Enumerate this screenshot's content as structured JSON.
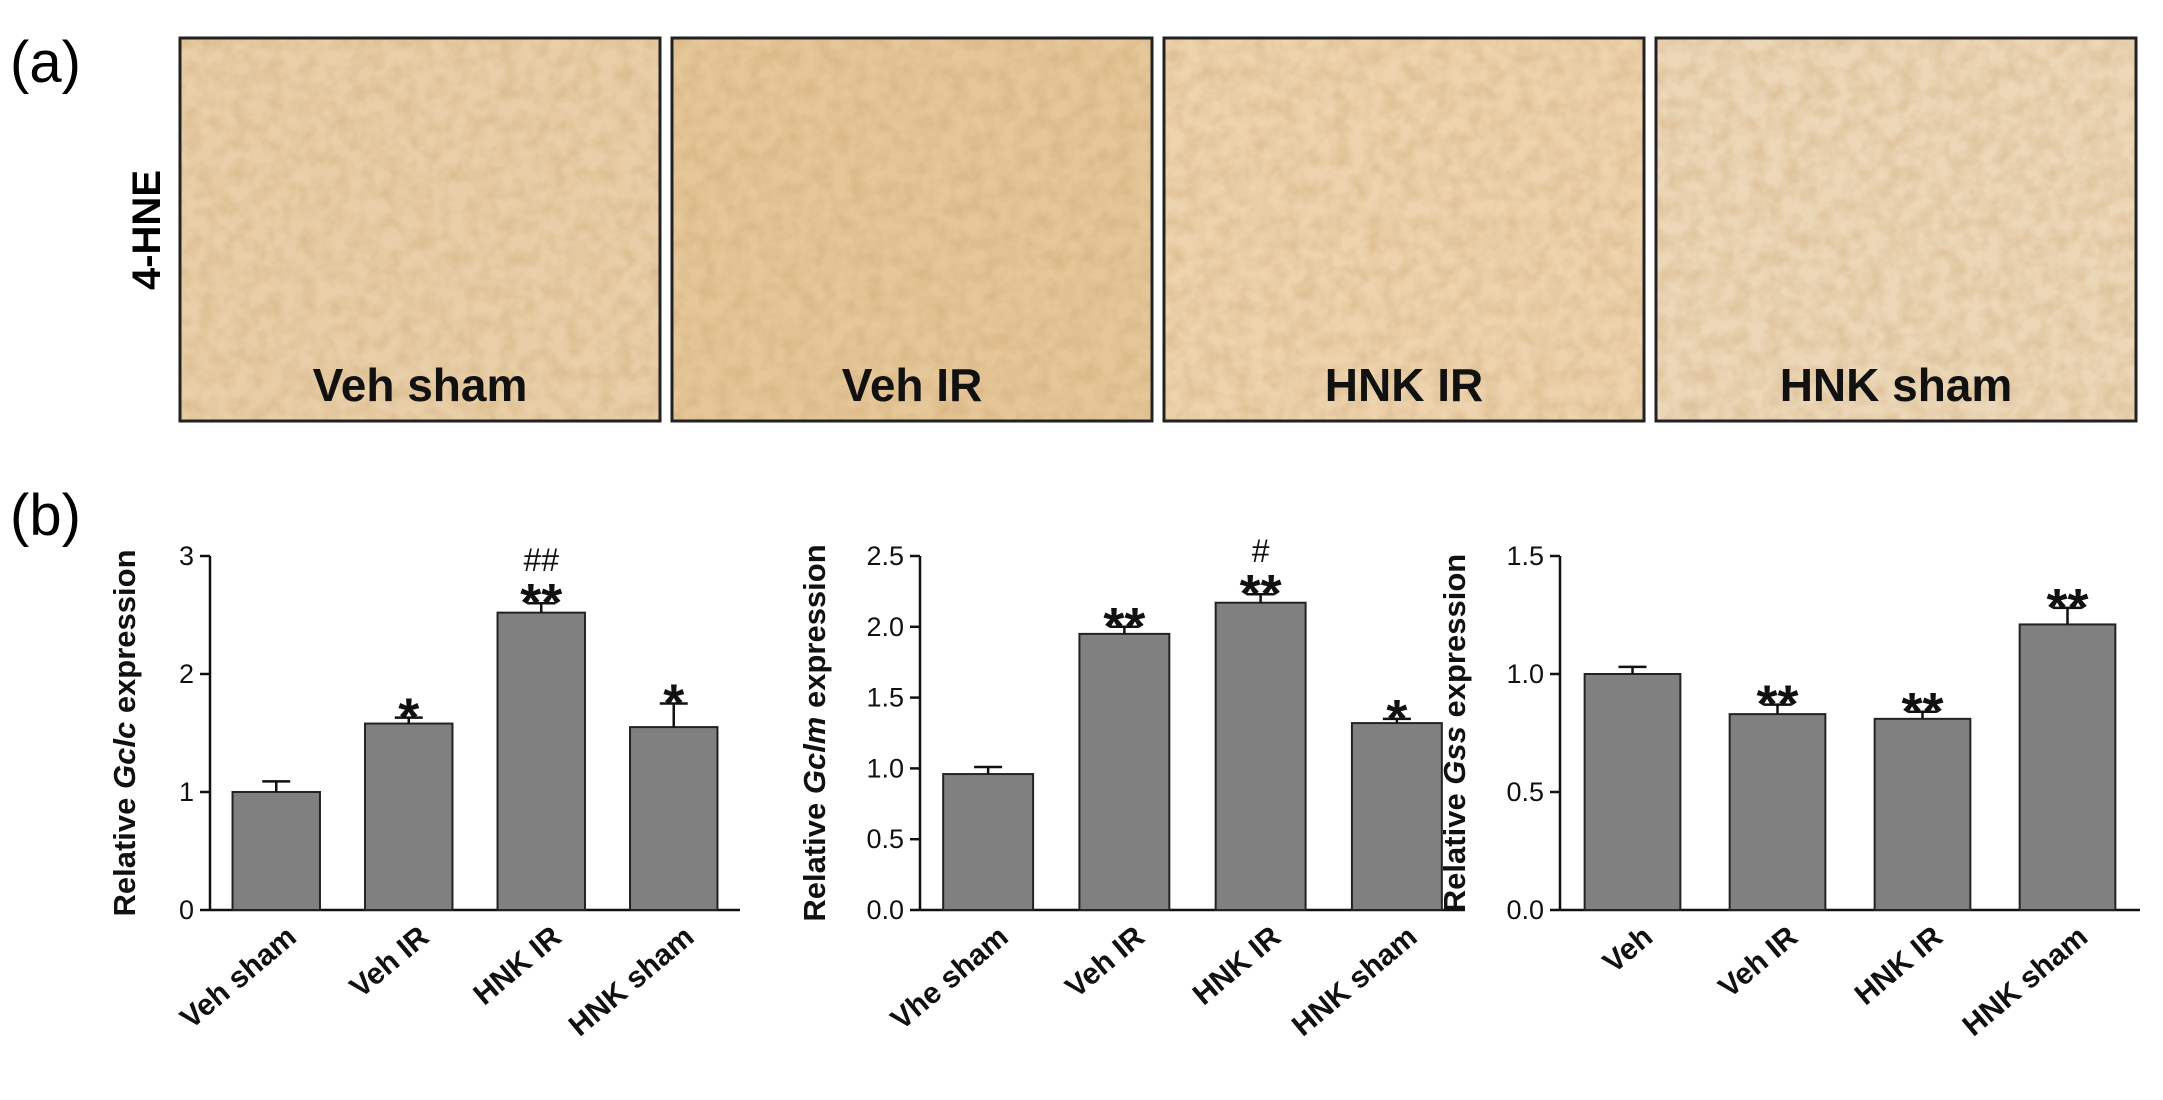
{
  "figure": {
    "panel_a_label": "(a)",
    "panel_b_label": "(b)",
    "stain_label": "4-HNE",
    "micrographs": [
      {
        "label": "Veh sham",
        "tone": "#e9cfa9"
      },
      {
        "label": "Veh IR",
        "tone": "#e6c79a"
      },
      {
        "label": "HNK IR",
        "tone": "#edd3ae"
      },
      {
        "label": "HNK sham",
        "tone": "#ecd7b8"
      }
    ],
    "bar_color": "#808080"
  },
  "chart_data": [
    {
      "type": "bar",
      "ylabel_prefix": "Relative ",
      "ylabel_gene": "Gclc",
      "ylabel_suffix": " expression",
      "ylim": [
        0,
        3
      ],
      "yticks": [
        "0",
        "1",
        "2",
        "3"
      ],
      "ytick_values": [
        0,
        1,
        2,
        3
      ],
      "categories": [
        "Veh sham",
        "Veh IR",
        "HNK IR",
        "HNK sham"
      ],
      "values": [
        1.0,
        1.58,
        2.52,
        1.55
      ],
      "errors": [
        0.09,
        0.05,
        0.08,
        0.2
      ],
      "stars": [
        "",
        "*",
        "**",
        "*"
      ],
      "hashes": [
        "",
        "",
        "##",
        ""
      ]
    },
    {
      "type": "bar",
      "ylabel_prefix": "Relative ",
      "ylabel_gene": "Gclm",
      "ylabel_suffix": " expression",
      "ylim": [
        0,
        2.5
      ],
      "yticks": [
        "0.0",
        "0.5",
        "1.0",
        "1.5",
        "2.0",
        "2.5"
      ],
      "ytick_values": [
        0,
        0.5,
        1,
        1.5,
        2,
        2.5
      ],
      "categories": [
        "Vhe sham",
        "Veh IR",
        "HNK IR",
        "HNK sham"
      ],
      "values": [
        0.96,
        1.95,
        2.17,
        1.32
      ],
      "errors": [
        0.05,
        0.05,
        0.06,
        0.03
      ],
      "stars": [
        "",
        "**",
        "**",
        "*"
      ],
      "hashes": [
        "",
        "",
        "#",
        ""
      ]
    },
    {
      "type": "bar",
      "ylabel_prefix": "Relative ",
      "ylabel_gene": "Gss",
      "ylabel_suffix": " expression",
      "ylim": [
        0,
        1.5
      ],
      "yticks": [
        "0.0",
        "0.5",
        "1.0",
        "1.5"
      ],
      "ytick_values": [
        0,
        0.5,
        1,
        1.5
      ],
      "categories": [
        "Veh",
        "Veh IR",
        "HNK IR",
        "HNK sham"
      ],
      "values": [
        1.0,
        0.83,
        0.81,
        1.21
      ],
      "errors": [
        0.03,
        0.04,
        0.03,
        0.07
      ],
      "stars": [
        "",
        "**",
        "**",
        "**"
      ],
      "hashes": [
        "",
        "",
        "",
        ""
      ]
    }
  ]
}
